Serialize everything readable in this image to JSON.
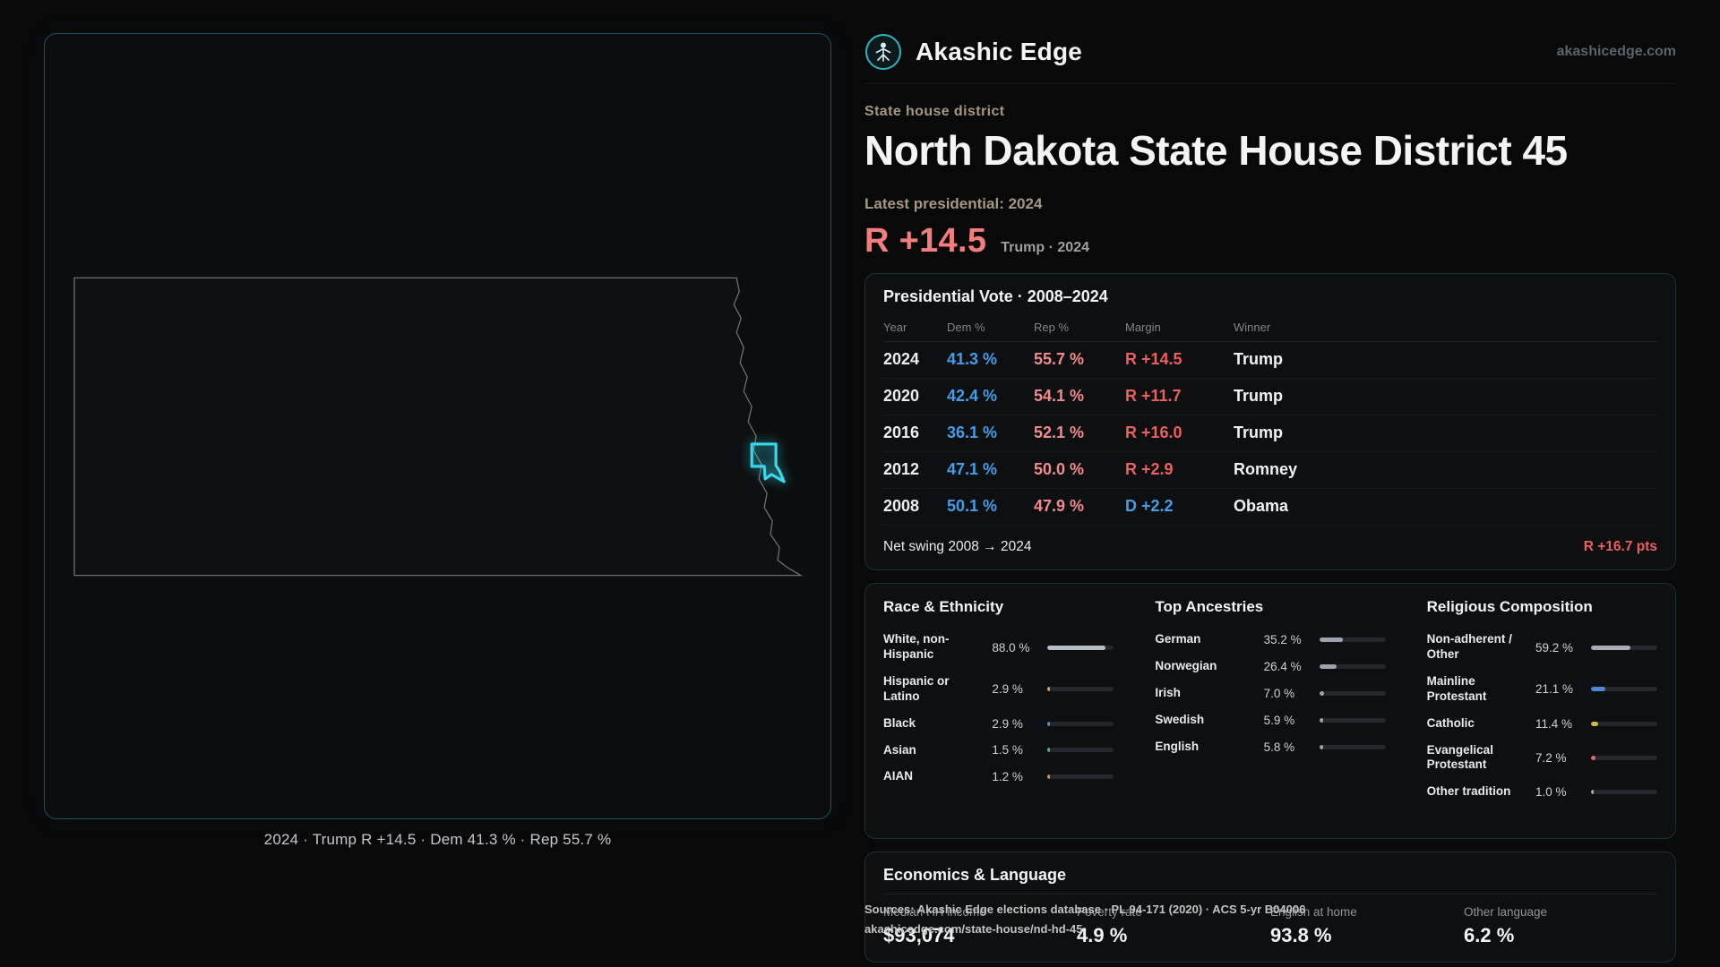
{
  "header": {
    "brand": "Akashic Edge",
    "site": "akashicedge.com"
  },
  "map": {
    "caption": "2024 · Trump R +14.5 · Dem 41.3 % · Rep 55.7 %"
  },
  "hero": {
    "eyebrow": "State house district",
    "title": "North Dakota State House District 45",
    "latest_label": "Latest presidential: 2024",
    "margin": "R +14.5",
    "margin_context": "Trump · 2024"
  },
  "presidential": {
    "title": "Presidential Vote · 2008–2024",
    "columns": {
      "year": "Year",
      "dem": "Dem %",
      "rep": "Rep %",
      "margin": "Margin",
      "winner": "Winner"
    },
    "rows": [
      {
        "year": "2024",
        "dem": "41.3 %",
        "rep": "55.7 %",
        "margin": "R +14.5",
        "party": "R",
        "winner": "Trump"
      },
      {
        "year": "2020",
        "dem": "42.4 %",
        "rep": "54.1 %",
        "margin": "R +11.7",
        "party": "R",
        "winner": "Trump"
      },
      {
        "year": "2016",
        "dem": "36.1 %",
        "rep": "52.1 %",
        "margin": "R +16.0",
        "party": "R",
        "winner": "Trump"
      },
      {
        "year": "2012",
        "dem": "47.1 %",
        "rep": "50.0 %",
        "margin": "R +2.9",
        "party": "R",
        "winner": "Romney"
      },
      {
        "year": "2008",
        "dem": "50.1 %",
        "rep": "47.9 %",
        "margin": "D +2.2",
        "party": "D",
        "winner": "Obama"
      }
    ],
    "net_swing_label": "Net swing 2008 → 2024",
    "net_swing_value": "R +16.7 pts"
  },
  "demographics": {
    "race": {
      "title": "Race & Ethnicity",
      "items": [
        {
          "label": "White, non-Hispanic",
          "value": "88.0 %",
          "pct": 88.0,
          "color": "#b6bdc5"
        },
        {
          "label": "Hispanic or Latino",
          "value": "2.9 %",
          "pct": 2.9,
          "color": "#e2a566"
        },
        {
          "label": "Black",
          "value": "2.9 %",
          "pct": 2.9,
          "color": "#5b8fd9"
        },
        {
          "label": "Asian",
          "value": "1.5 %",
          "pct": 1.5,
          "color": "#67b97f"
        },
        {
          "label": "AIAN",
          "value": "1.2 %",
          "pct": 1.2,
          "color": "#de8a63"
        }
      ]
    },
    "ancestries": {
      "title": "Top Ancestries",
      "items": [
        {
          "label": "German",
          "value": "35.2 %",
          "pct": 35.2,
          "color": "#9aa5b1"
        },
        {
          "label": "Norwegian",
          "value": "26.4 %",
          "pct": 26.4,
          "color": "#9aa5b1"
        },
        {
          "label": "Irish",
          "value": "7.0 %",
          "pct": 7.0,
          "color": "#9aa5b1"
        },
        {
          "label": "Swedish",
          "value": "5.9 %",
          "pct": 5.9,
          "color": "#9aa5b1"
        },
        {
          "label": "English",
          "value": "5.8 %",
          "pct": 5.8,
          "color": "#9aa5b1"
        }
      ]
    },
    "religion": {
      "title": "Religious Composition",
      "items": [
        {
          "label": "Non-adherent / Other",
          "value": "59.2 %",
          "pct": 59.2,
          "color": "#a9aeb5"
        },
        {
          "label": "Mainline Protestant",
          "value": "21.1 %",
          "pct": 21.1,
          "color": "#4f86d8"
        },
        {
          "label": "Catholic",
          "value": "11.4 %",
          "pct": 11.4,
          "color": "#d9b83f"
        },
        {
          "label": "Evangelical Protestant",
          "value": "7.2 %",
          "pct": 7.2,
          "color": "#e06c6c"
        },
        {
          "label": "Other tradition",
          "value": "1.0 %",
          "pct": 1.0,
          "color": "#a9aeb5"
        }
      ]
    }
  },
  "economics": {
    "title": "Economics & Language",
    "stats": [
      {
        "label": "Median HH income",
        "value": "$93,074"
      },
      {
        "label": "Poverty rate",
        "value": "4.9 %"
      },
      {
        "label": "English at home",
        "value": "93.8 %"
      },
      {
        "label": "Other language",
        "value": "6.2 %"
      }
    ]
  },
  "sources": {
    "line1": "Sources: Akashic Edge elections database · PL 94-171 (2020) · ACS 5-yr B04006",
    "link": "akashicedge.com/state-house/nd-hd-45"
  }
}
